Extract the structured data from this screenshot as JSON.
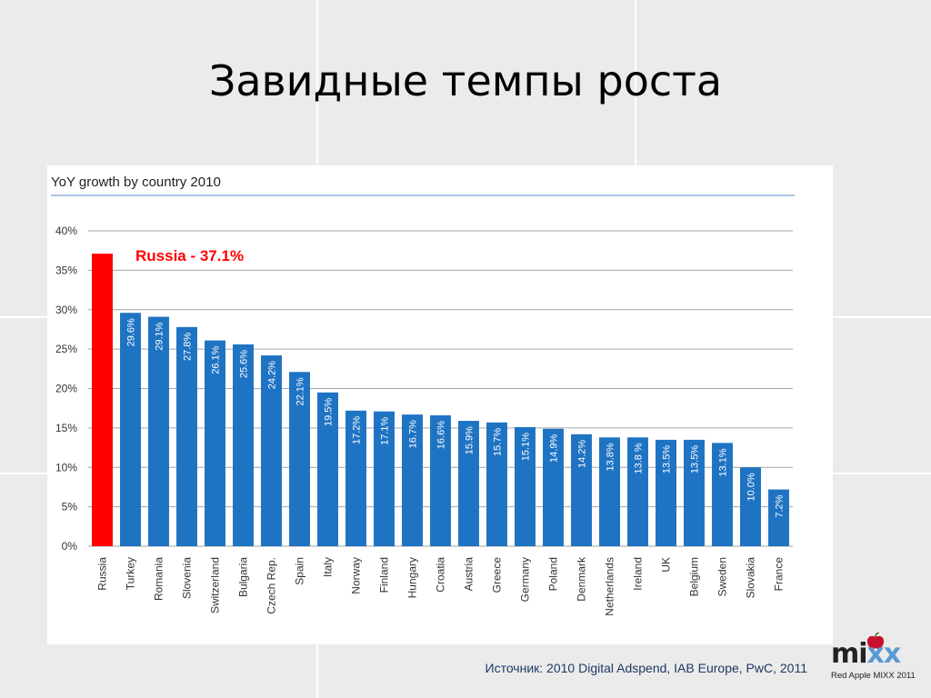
{
  "slide": {
    "title": "Завидные темпы роста",
    "source": "Источник: 2010 Digital Adspend, IAB Europe, PwC, 2011"
  },
  "logo": {
    "word_prefix": "mi",
    "word_suffix": "xx",
    "tagline": "Red Apple MIXX 2011",
    "icon": "red-apple-icon"
  },
  "chart_data": {
    "type": "bar",
    "title": "YoY growth by country 2010",
    "xlabel": "",
    "ylabel": "",
    "ylim": [
      0,
      40
    ],
    "y_ticks": [
      "0%",
      "5%",
      "10%",
      "15%",
      "20%",
      "25%",
      "30%",
      "35%",
      "40%"
    ],
    "y_tick_values": [
      0,
      5,
      10,
      15,
      20,
      25,
      30,
      35,
      40
    ],
    "grid": true,
    "categories": [
      "Russia",
      "Turkey",
      "Romania",
      "Slovenia",
      "Switzerland",
      "Bulgaria",
      "Czech Rep.",
      "Spain",
      "Italy",
      "Norway",
      "Finland",
      "Hungary",
      "Croatia",
      "Austria",
      "Greece",
      "Germany",
      "Poland",
      "Denmark",
      "Netherlands",
      "Ireland",
      "UK",
      "Belgium",
      "Sweden",
      "Slovakia",
      "France"
    ],
    "values": [
      37.1,
      29.6,
      29.1,
      27.8,
      26.1,
      25.6,
      24.2,
      22.1,
      19.5,
      17.2,
      17.1,
      16.7,
      16.6,
      15.9,
      15.7,
      15.1,
      14.9,
      14.2,
      13.8,
      13.8,
      13.5,
      13.5,
      13.1,
      10.0,
      7.2
    ],
    "data_labels": [
      "",
      "29.6%",
      "29.1%",
      "27.8%",
      "26.1%",
      "25.6%",
      "24.2%",
      "22.1%",
      "19.5%",
      "17.2%",
      "17.1%",
      "16.7%",
      "16.6%",
      "15.9%",
      "15.7%",
      "15.1%",
      "14.9%",
      "14.2%",
      "13.8%",
      "13.8 %",
      "13.5%",
      "13.5%",
      "13.1%",
      "10.0%",
      "7.2%"
    ],
    "highlight": {
      "category": "Russia",
      "label": "Russia - 37.1%",
      "color": "#ff0000"
    },
    "colors": {
      "bar": "#1f73c3",
      "highlight": "#ff0000",
      "title_rule": "#8eb4e3",
      "grid": "#a6a6a6"
    }
  }
}
